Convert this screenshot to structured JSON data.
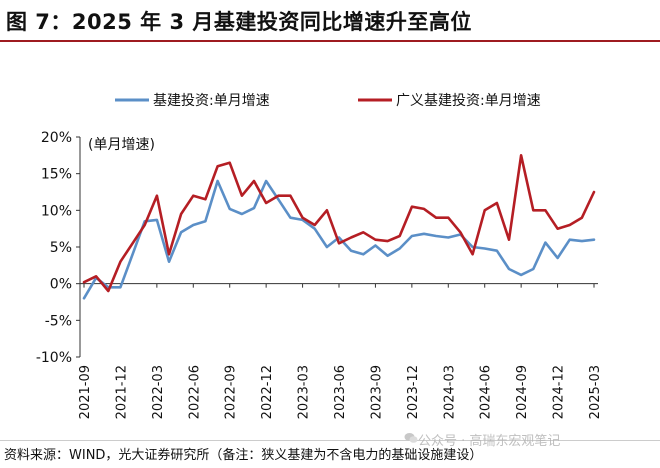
{
  "figure": {
    "title": "图 7：2025 年 3 月基建投资同比增速升至高位",
    "source": "资料来源：WIND，光大证券研究所（备注：狭义基建为不含电力的基础设施建设）",
    "watermark": "公众号 · 高瑞东宏观笔记"
  },
  "chart_data": {
    "type": "line",
    "unit_label": "(单月增速)",
    "legend_position": "top",
    "grid": false,
    "ylim": [
      -10,
      20
    ],
    "y_ticks": [
      "-10%",
      "-5%",
      "0%",
      "5%",
      "10%",
      "15%",
      "20%"
    ],
    "x_tick_labels": [
      "2021-09",
      "2021-12",
      "2022-03",
      "2022-06",
      "2022-09",
      "2022-12",
      "2023-03",
      "2023-06",
      "2023-09",
      "2023-12",
      "2024-03",
      "2024-06",
      "2024-09",
      "2024-12",
      "2025-03"
    ],
    "x": [
      "2021-09",
      "2021-10",
      "2021-11",
      "2021-12",
      "2022-01",
      "2022-02",
      "2022-03",
      "2022-04",
      "2022-05",
      "2022-06",
      "2022-07",
      "2022-08",
      "2022-09",
      "2022-10",
      "2022-11",
      "2022-12",
      "2023-01",
      "2023-02",
      "2023-03",
      "2023-04",
      "2023-05",
      "2023-06",
      "2023-07",
      "2023-08",
      "2023-09",
      "2023-10",
      "2023-11",
      "2023-12",
      "2024-01",
      "2024-02",
      "2024-03",
      "2024-04",
      "2024-05",
      "2024-06",
      "2024-07",
      "2024-08",
      "2024-09",
      "2024-10",
      "2024-11",
      "2024-12",
      "2025-01",
      "2025-02",
      "2025-03"
    ],
    "series": [
      {
        "name": "基建投资:单月增速",
        "color": "#5b8fc7",
        "values": [
          -2.0,
          0.8,
          -0.5,
          -0.5,
          4.0,
          8.5,
          8.7,
          3.0,
          7.0,
          8.0,
          8.5,
          14.0,
          10.2,
          9.5,
          10.3,
          14.0,
          11.5,
          9.0,
          8.7,
          7.5,
          5.0,
          6.3,
          4.5,
          4.0,
          5.2,
          3.8,
          4.8,
          6.5,
          6.8,
          6.5,
          6.3,
          6.7,
          5.0,
          4.8,
          4.5,
          2.0,
          1.2,
          2.0,
          5.6,
          3.5,
          6.0,
          5.8,
          6.0
        ]
      },
      {
        "name": "广义基建投资:单月增速",
        "color": "#b51e24",
        "values": [
          0.2,
          1.0,
          -1.0,
          3.0,
          5.5,
          8.0,
          12.0,
          4.0,
          9.5,
          12.0,
          11.5,
          16.0,
          16.5,
          12.0,
          14.0,
          11.0,
          12.0,
          12.0,
          9.0,
          8.0,
          10.0,
          5.5,
          6.3,
          7.0,
          6.0,
          5.8,
          6.5,
          10.5,
          10.2,
          9.0,
          9.0,
          7.0,
          4.0,
          10.0,
          11.0,
          6.0,
          17.5,
          10.0,
          10.0,
          7.5,
          8.0,
          9.0,
          12.5
        ]
      }
    ]
  }
}
